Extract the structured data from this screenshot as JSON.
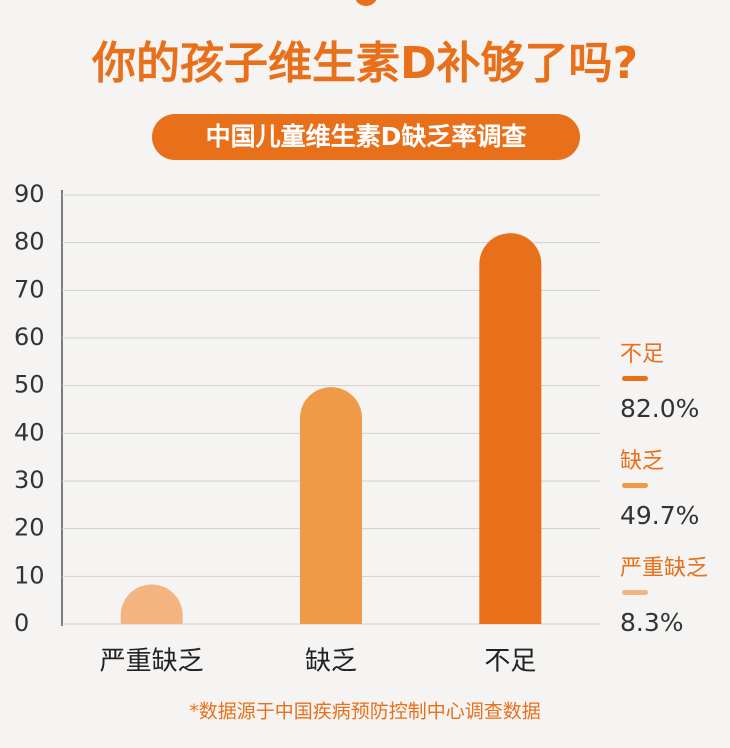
{
  "chart_data": {
    "type": "bar",
    "title": "你的孩子维生素D补够了吗?",
    "subtitle": "中国儿童维生素D缺乏率调查",
    "categories": [
      "严重缺乏",
      "缺乏",
      "不足"
    ],
    "values": [
      8.3,
      49.7,
      82.0
    ],
    "value_labels": [
      "8.3%",
      "49.7%",
      "82.0%"
    ],
    "colors": [
      "#f3b47f",
      "#ef9a46",
      "#e9701b"
    ],
    "ylim": [
      0,
      90
    ],
    "yticks": [
      0,
      10,
      20,
      30,
      40,
      50,
      60,
      70,
      80,
      90
    ],
    "grid": true,
    "legend": "right",
    "note": "*数据源于中国疾病预防控制中心调查数据"
  }
}
